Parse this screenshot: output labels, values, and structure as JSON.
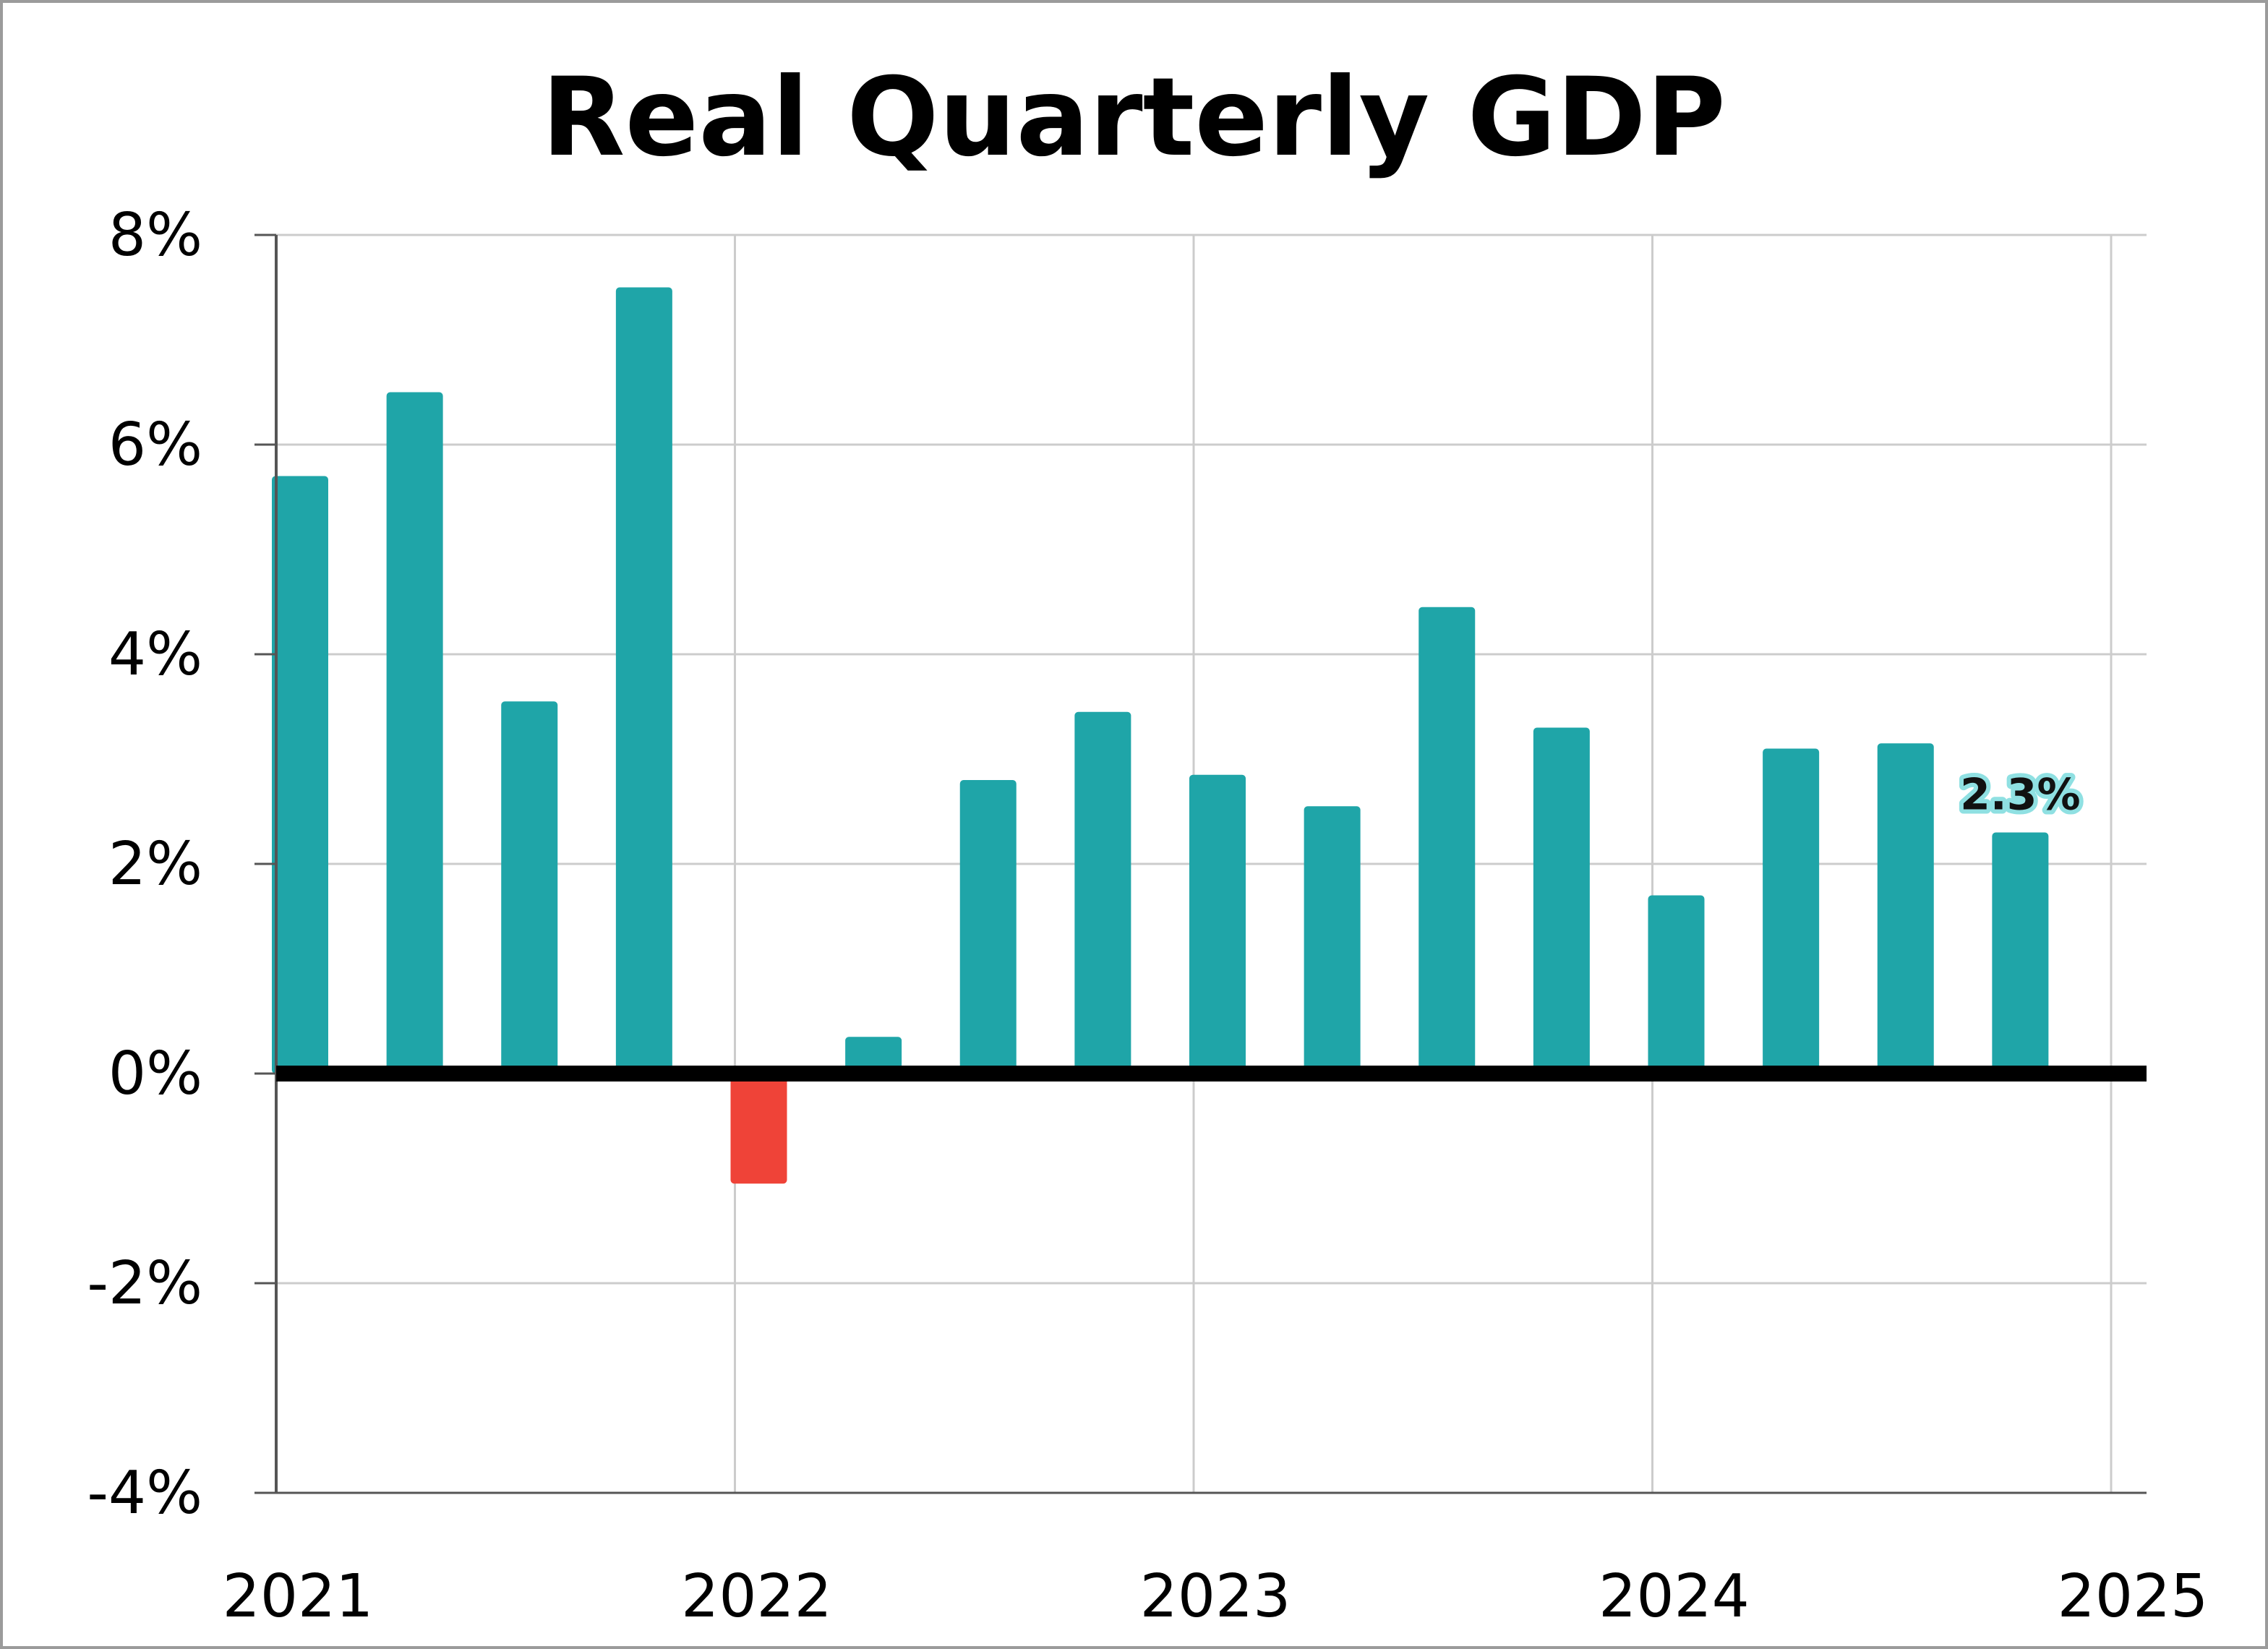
{
  "chart_data": {
    "type": "bar",
    "title": "Real Quarterly GDP",
    "xlabel": "",
    "ylabel": "",
    "ylim": [
      -4,
      8
    ],
    "y_ticks": [
      8,
      6,
      4,
      2,
      0,
      -2,
      -4
    ],
    "y_tick_labels": [
      "8%",
      "6%",
      "4%",
      "2%",
      "0%",
      "-2%",
      "-4%"
    ],
    "x_ticks": [
      "2021",
      "2022",
      "2023",
      "2024",
      "2025"
    ],
    "grid": true,
    "legend": "none",
    "categories": [
      "2021 Q1",
      "2021 Q2",
      "2021 Q3",
      "2021 Q4",
      "2022 Q1",
      "2022 Q2",
      "2022 Q3",
      "2022 Q4",
      "2023 Q1",
      "2023 Q2",
      "2023 Q3",
      "2023 Q4",
      "2024 Q1",
      "2024 Q2",
      "2024 Q3",
      "2024 Q4"
    ],
    "values": [
      5.7,
      6.5,
      3.55,
      7.5,
      -1.05,
      0.35,
      2.8,
      3.45,
      2.85,
      2.55,
      4.45,
      3.3,
      1.7,
      3.1,
      3.15,
      2.3
    ],
    "annotations": [
      {
        "category": "2024 Q4",
        "text": "2.3%"
      }
    ],
    "colors": {
      "positive": "#1fa5a8",
      "negative": "#ef4338",
      "zero_line": "#000000",
      "grid": "#cccccc"
    }
  }
}
